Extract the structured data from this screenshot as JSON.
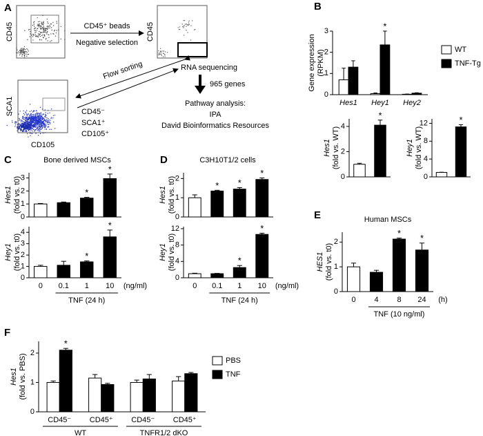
{
  "diagram": {
    "panel": "A",
    "plots": [
      {
        "ylabel": "CD45"
      },
      {
        "ylabel": "CD45"
      },
      {
        "ylabel": "SCA1",
        "xlabel": "CD105"
      }
    ],
    "steps": {
      "beads": "CD45⁺ beads",
      "negative": "Negative selection",
      "sorting": "Flow sorting",
      "rnaseq": "RNA sequencing",
      "markers": [
        "CD45⁻",
        "SCA1⁺",
        "CD105⁺"
      ],
      "genes": "965 genes",
      "pathway": [
        "Pathway analysis:",
        "IPA",
        "David Bioinformatics Resources"
      ]
    }
  },
  "chart_data": [
    {
      "type": "bar",
      "panel": "B",
      "ylabel": "Gene expression",
      "ylabel_note": "(RPKM)",
      "categories": [
        "Hes1",
        "Hey1",
        "Hey2"
      ],
      "series": [
        {
          "name": "WT",
          "color": "#ffffff",
          "values": [
            0.7,
            0.05,
            0.02
          ],
          "errors": [
            0.55,
            0.03,
            0.01
          ],
          "stars": [
            null,
            null,
            null
          ]
        },
        {
          "name": "TNF-Tg",
          "color": "#000000",
          "values": [
            1.3,
            2.35,
            0.07
          ],
          "errors": [
            0.3,
            0.65,
            0.02
          ],
          "stars": [
            null,
            "*",
            null
          ]
        }
      ],
      "ylim": [
        0,
        3
      ],
      "yticks": [
        0,
        1,
        2,
        3
      ],
      "legend": "right"
    },
    {
      "type": "bar",
      "ylabel": "Hes1",
      "ylabel_note": "(fold vs. WT)",
      "categories": [
        null,
        null
      ],
      "colors": [
        "#ffffff",
        "#000000"
      ],
      "values": [
        1,
        4.1
      ],
      "errors": [
        0.08,
        0.4
      ],
      "stars": [
        null,
        "*"
      ],
      "ylim": [
        0,
        4.6
      ],
      "yticks": [
        0,
        2,
        4
      ]
    },
    {
      "type": "bar",
      "ylabel": "Hey1",
      "ylabel_note": "(fold vs. WT)",
      "categories": [
        null,
        null
      ],
      "colors": [
        "#ffffff",
        "#000000"
      ],
      "values": [
        1,
        11.2
      ],
      "errors": [
        0.05,
        0.5
      ],
      "stars": [
        null,
        "*"
      ],
      "ylim": [
        0,
        13
      ],
      "yticks": [
        0,
        4,
        8,
        12
      ]
    },
    {
      "type": "bar",
      "panel": "C",
      "title": "Bone derived MSCs",
      "ylabel": "Hes1",
      "ylabel_note": "(fold vs. t0)",
      "categories": [
        null,
        null,
        null,
        null
      ],
      "colors": [
        "#ffffff",
        "#000000",
        "#000000",
        "#000000"
      ],
      "values": [
        1,
        1.1,
        1.45,
        2.95
      ],
      "errors": [
        0.04,
        0.05,
        0.06,
        0.35
      ],
      "stars": [
        null,
        null,
        "*",
        "*"
      ],
      "ylim": [
        0,
        3.4
      ],
      "yticks": [
        0,
        1,
        2,
        3
      ]
    },
    {
      "type": "bar",
      "ylabel": "Hey1",
      "ylabel_note": "(fold vs. t0)",
      "categories": [
        "0",
        "0.1",
        "1",
        "10"
      ],
      "unit": "(ng/ml)",
      "xlabel": "TNF (24 h)",
      "colors": [
        "#ffffff",
        "#000000",
        "#000000",
        "#000000"
      ],
      "values": [
        1,
        1.1,
        1.4,
        3.6
      ],
      "errors": [
        0.1,
        0.35,
        0.08,
        0.6
      ],
      "stars": [
        null,
        null,
        "*",
        "*"
      ],
      "ylim": [
        0,
        4.5
      ],
      "yticks": [
        0,
        1,
        2,
        3,
        4
      ]
    },
    {
      "type": "bar",
      "panel": "D",
      "title": "C3H10T1/2 cells",
      "ylabel": "Hes1",
      "ylabel_note": "(fold vs. t0)",
      "categories": [
        null,
        null,
        null,
        null
      ],
      "colors": [
        "#ffffff",
        "#000000",
        "#000000",
        "#000000"
      ],
      "values": [
        1,
        1.35,
        1.45,
        1.95
      ],
      "errors": [
        0.15,
        0.04,
        0.08,
        0.08
      ],
      "stars": [
        null,
        "*",
        "*",
        "*"
      ],
      "ylim": [
        0,
        2.3
      ],
      "yticks": [
        0,
        1,
        2
      ]
    },
    {
      "type": "bar",
      "ylabel": "Hey1",
      "ylabel_note": "(fold vs. t0)",
      "categories": [
        "0",
        "0.1",
        "1",
        "10"
      ],
      "unit": "(ng/ml)",
      "xlabel": "TNF (24 h)",
      "colors": [
        "#ffffff",
        "#000000",
        "#000000",
        "#000000"
      ],
      "values": [
        1,
        1,
        2.5,
        10.6
      ],
      "errors": [
        0.12,
        0.08,
        0.5,
        0.3
      ],
      "stars": [
        null,
        null,
        "*",
        "*"
      ],
      "ylim": [
        0,
        12.5
      ],
      "yticks": [
        0,
        4,
        8,
        12
      ]
    },
    {
      "type": "bar",
      "panel": "E",
      "title": "Human MSCs",
      "ylabel": "HES1",
      "ylabel_note": "(fold vs. t0)",
      "categories": [
        "0",
        "4",
        "8",
        "24"
      ],
      "unit": "(h)",
      "xlabel": "TNF (10 ng/ml)",
      "colors": [
        "#ffffff",
        "#000000",
        "#000000",
        "#000000"
      ],
      "values": [
        1,
        0.78,
        2.12,
        1.68
      ],
      "errors": [
        0.15,
        0.08,
        0.04,
        0.28
      ],
      "stars": [
        null,
        null,
        "*",
        "*"
      ],
      "ylim": [
        0,
        2.4
      ],
      "yticks": [
        0,
        1,
        2
      ]
    },
    {
      "type": "bar",
      "panel": "F",
      "ylabel": "Hes1",
      "ylabel_note": "(fold vs. PBS)",
      "categories": [
        "CD45⁻",
        "CD45⁺",
        "CD45⁻",
        "CD45⁺"
      ],
      "groups": [
        "WT",
        "TNFR1/2 dKO"
      ],
      "series": [
        {
          "name": "PBS",
          "color": "#ffffff",
          "values": [
            1,
            1.15,
            1,
            1.05
          ],
          "errors": [
            0.05,
            0.12,
            0.08,
            0.15
          ],
          "stars": [
            null,
            null,
            null,
            null
          ]
        },
        {
          "name": "TNF",
          "color": "#000000",
          "values": [
            2.1,
            0.93,
            1.12,
            1.3
          ],
          "errors": [
            0.06,
            0.04,
            0.15,
            0.04
          ],
          "stars": [
            "*",
            null,
            null,
            null
          ]
        }
      ],
      "ylim": [
        0,
        2.4
      ],
      "yticks": [
        0,
        1,
        2
      ],
      "legend": "right"
    }
  ]
}
